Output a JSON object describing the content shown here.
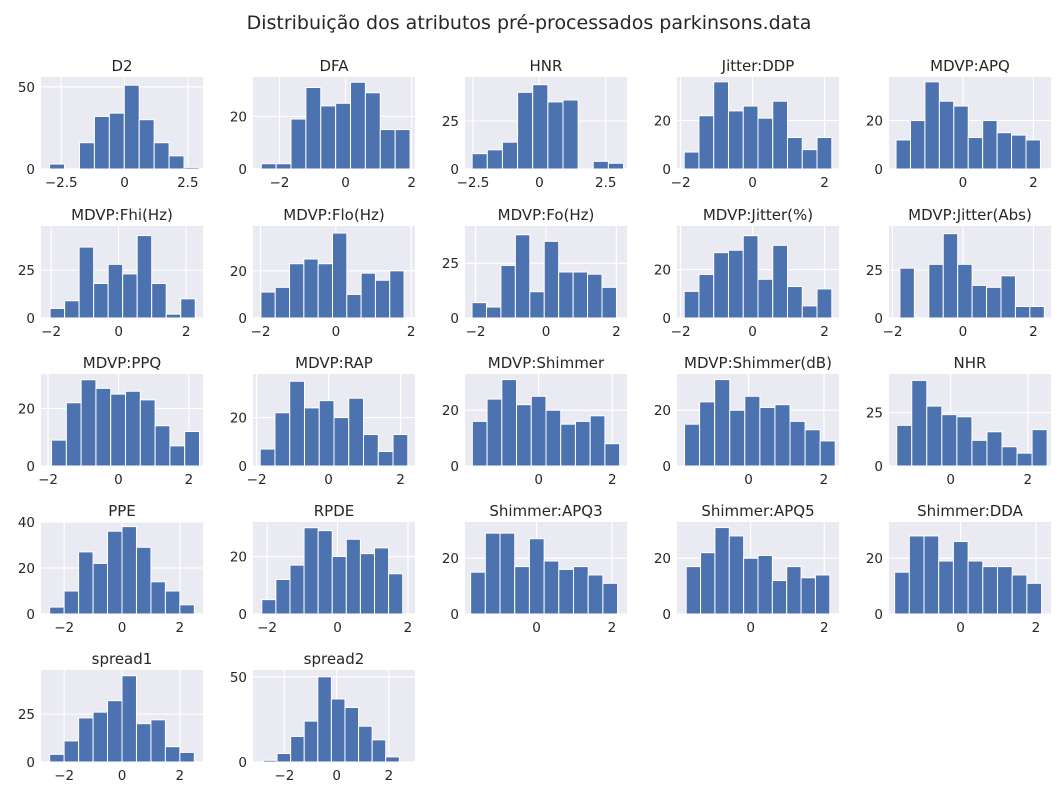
{
  "figure": {
    "title": "Distribuição dos atributos pré-processados parkinsons.data",
    "background": "#ffffff",
    "axes_face": "#eaeaf2",
    "bar_color": "#4c72b0",
    "text_color": "#262626"
  },
  "chart_data": [
    {
      "type": "bar",
      "title": "D2",
      "xlim": [
        -3.3,
        3.1
      ],
      "ylim": [
        0,
        56
      ],
      "xticks": [
        -2.5,
        0.0,
        2.5
      ],
      "yticks": [
        0,
        50
      ],
      "bin_edges": [
        -2.96,
        -2.37,
        -1.78,
        -1.19,
        -0.6,
        -0.01,
        0.58,
        1.17,
        1.76,
        2.35,
        2.94
      ],
      "values": [
        3,
        0,
        16,
        32,
        34,
        51,
        30,
        16,
        8,
        1
      ]
    },
    {
      "type": "bar",
      "title": "DFA",
      "xlim": [
        -2.8,
        2.1
      ],
      "ylim": [
        0,
        35
      ],
      "xticks": [
        -2,
        0,
        2
      ],
      "yticks": [
        0,
        20
      ],
      "bin_edges": [
        -2.55,
        -2.1,
        -1.65,
        -1.2,
        -0.75,
        -0.3,
        0.15,
        0.6,
        1.05,
        1.5,
        1.95
      ],
      "values": [
        2,
        2,
        19,
        31,
        24,
        25,
        33,
        29,
        15,
        15
      ]
    },
    {
      "type": "bar",
      "title": "HNR",
      "xlim": [
        -2.8,
        3.3
      ],
      "ylim": [
        0,
        48
      ],
      "xticks": [
        -2.5,
        0.0,
        2.5
      ],
      "yticks": [
        0,
        25
      ],
      "bin_edges": [
        -2.53,
        -1.96,
        -1.39,
        -0.82,
        -0.25,
        0.32,
        0.89,
        1.46,
        2.03,
        2.6,
        3.17
      ],
      "values": [
        8,
        10,
        14,
        40,
        44,
        35,
        36,
        0,
        4,
        3
      ]
    },
    {
      "type": "bar",
      "title": "Jitter:DDP",
      "xlim": [
        -2.1,
        2.4
      ],
      "ylim": [
        0,
        38
      ],
      "xticks": [
        -2,
        0,
        2
      ],
      "yticks": [
        0,
        20
      ],
      "bin_edges": [
        -1.9,
        -1.49,
        -1.08,
        -0.67,
        -0.26,
        0.15,
        0.56,
        0.97,
        1.38,
        1.79,
        2.2
      ],
      "values": [
        7,
        22,
        36,
        24,
        26,
        21,
        28,
        13,
        8,
        13
      ]
    },
    {
      "type": "bar",
      "title": "MDVP:APQ",
      "xlim": [
        -2.1,
        2.5
      ],
      "ylim": [
        0,
        38
      ],
      "xticks": [
        0,
        2
      ],
      "yticks": [
        0,
        20
      ],
      "bin_edges": [
        -1.9,
        -1.49,
        -1.08,
        -0.67,
        -0.26,
        0.15,
        0.56,
        0.97,
        1.38,
        1.79,
        2.2
      ],
      "values": [
        12,
        20,
        36,
        28,
        26,
        13,
        20,
        15,
        14,
        12
      ]
    },
    {
      "type": "bar",
      "title": "MDVP:Fhi(Hz)",
      "xlim": [
        -2.3,
        2.5
      ],
      "ylim": [
        0,
        48
      ],
      "xticks": [
        -2,
        0,
        2
      ],
      "yticks": [
        0,
        25
      ],
      "bin_edges": [
        -2.03,
        -1.6,
        -1.17,
        -0.74,
        -0.31,
        0.12,
        0.55,
        0.98,
        1.41,
        1.84,
        2.27
      ],
      "values": [
        5,
        9,
        37,
        18,
        28,
        23,
        43,
        18,
        2,
        10
      ]
    },
    {
      "type": "bar",
      "title": "MDVP:Flo(Hz)",
      "xlim": [
        -2.2,
        2.1
      ],
      "ylim": [
        0,
        39
      ],
      "xticks": [
        -2,
        0,
        2
      ],
      "yticks": [
        0,
        20
      ],
      "bin_edges": [
        -1.99,
        -1.61,
        -1.23,
        -0.85,
        -0.47,
        -0.09,
        0.29,
        0.67,
        1.05,
        1.43,
        1.81
      ],
      "values": [
        11,
        13,
        23,
        25,
        23,
        36,
        10,
        19,
        16,
        20
      ]
    },
    {
      "type": "bar",
      "title": "MDVP:Fo(Hz)",
      "xlim": [
        -2.3,
        2.3
      ],
      "ylim": [
        0,
        42
      ],
      "xticks": [
        -2,
        0,
        2
      ],
      "yticks": [
        0,
        25
      ],
      "bin_edges": [
        -2.1,
        -1.69,
        -1.28,
        -0.87,
        -0.46,
        -0.05,
        0.36,
        0.77,
        1.18,
        1.59,
        2.0
      ],
      "values": [
        7,
        5,
        24,
        38,
        12,
        35,
        21,
        21,
        20,
        14
      ]
    },
    {
      "type": "bar",
      "title": "MDVP:Jitter(%)",
      "xlim": [
        -2.1,
        2.4
      ],
      "ylim": [
        0,
        38
      ],
      "xticks": [
        -2,
        0,
        2
      ],
      "yticks": [
        0,
        20
      ],
      "bin_edges": [
        -1.9,
        -1.49,
        -1.08,
        -0.67,
        -0.26,
        0.15,
        0.56,
        0.97,
        1.38,
        1.79,
        2.2
      ],
      "values": [
        11,
        18,
        27,
        28,
        34,
        16,
        30,
        13,
        5,
        12
      ]
    },
    {
      "type": "bar",
      "title": "MDVP:Jitter(Abs)",
      "xlim": [
        -2.1,
        2.5
      ],
      "ylim": [
        0,
        48
      ],
      "xticks": [
        -2,
        0,
        2
      ],
      "yticks": [
        0,
        25
      ],
      "bin_edges": [
        -1.79,
        -1.38,
        -0.97,
        -0.56,
        -0.15,
        0.26,
        0.67,
        1.08,
        1.49,
        1.9,
        2.31
      ],
      "values": [
        26,
        0,
        28,
        44,
        28,
        17,
        16,
        22,
        6,
        6
      ]
    },
    {
      "type": "bar",
      "title": "MDVP:PPQ",
      "xlim": [
        -2.2,
        2.4
      ],
      "ylim": [
        0,
        32
      ],
      "xticks": [
        -2,
        0,
        2
      ],
      "yticks": [
        0,
        20
      ],
      "bin_edges": [
        -1.9,
        -1.48,
        -1.06,
        -0.64,
        -0.22,
        0.2,
        0.62,
        1.04,
        1.46,
        1.88,
        2.3
      ],
      "values": [
        9,
        22,
        30,
        27,
        25,
        26,
        23,
        14,
        7,
        12
      ]
    },
    {
      "type": "bar",
      "title": "MDVP:RAP",
      "xlim": [
        -2.1,
        2.4
      ],
      "ylim": [
        0,
        38
      ],
      "xticks": [
        -2,
        0,
        2
      ],
      "yticks": [
        0,
        20
      ],
      "bin_edges": [
        -1.9,
        -1.49,
        -1.08,
        -0.67,
        -0.26,
        0.15,
        0.56,
        0.97,
        1.38,
        1.79,
        2.2
      ],
      "values": [
        7,
        22,
        35,
        24,
        27,
        20,
        28,
        13,
        6,
        13
      ]
    },
    {
      "type": "bar",
      "title": "MDVP:Shimmer",
      "xlim": [
        -2.0,
        2.4
      ],
      "ylim": [
        0,
        33
      ],
      "xticks": [
        0,
        2
      ],
      "yticks": [
        0,
        20
      ],
      "bin_edges": [
        -1.8,
        -1.4,
        -1.0,
        -0.6,
        -0.2,
        0.2,
        0.6,
        1.0,
        1.4,
        1.8,
        2.2
      ],
      "values": [
        16,
        24,
        31,
        22,
        25,
        20,
        15,
        16,
        18,
        8
      ]
    },
    {
      "type": "bar",
      "title": "MDVP:Shimmer(dB)",
      "xlim": [
        -1.9,
        2.4
      ],
      "ylim": [
        0,
        33
      ],
      "xticks": [
        0,
        2
      ],
      "yticks": [
        0,
        20
      ],
      "bin_edges": [
        -1.7,
        -1.3,
        -0.9,
        -0.5,
        -0.1,
        0.3,
        0.7,
        1.1,
        1.5,
        1.9,
        2.3
      ],
      "values": [
        15,
        23,
        31,
        20,
        25,
        21,
        22,
        16,
        13,
        9
      ]
    },
    {
      "type": "bar",
      "title": "NHR",
      "xlim": [
        -1.6,
        2.6
      ],
      "ylim": [
        0,
        43
      ],
      "xticks": [
        0,
        2
      ],
      "yticks": [
        0,
        25
      ],
      "bin_edges": [
        -1.4,
        -1.01,
        -0.62,
        -0.23,
        0.16,
        0.55,
        0.94,
        1.33,
        1.72,
        2.11,
        2.5
      ],
      "values": [
        19,
        40,
        28,
        24,
        23,
        12,
        16,
        9,
        6,
        17
      ]
    },
    {
      "type": "bar",
      "title": "PPE",
      "xlim": [
        -2.8,
        2.8
      ],
      "ylim": [
        0,
        40
      ],
      "xticks": [
        -2,
        0,
        2
      ],
      "yticks": [
        0,
        20,
        40
      ],
      "bin_edges": [
        -2.5,
        -2.0,
        -1.5,
        -1.0,
        -0.5,
        0.0,
        0.5,
        1.0,
        1.5,
        2.0,
        2.5
      ],
      "values": [
        3,
        10,
        27,
        22,
        36,
        38,
        29,
        14,
        10,
        4
      ]
    },
    {
      "type": "bar",
      "title": "RPDE",
      "xlim": [
        -2.4,
        2.2
      ],
      "ylim": [
        0,
        32
      ],
      "xticks": [
        -2,
        0,
        2
      ],
      "yticks": [
        0,
        20
      ],
      "bin_edges": [
        -2.15,
        -1.75,
        -1.35,
        -0.95,
        -0.55,
        -0.15,
        0.25,
        0.65,
        1.05,
        1.45,
        1.85
      ],
      "values": [
        5,
        12,
        17,
        30,
        29,
        20,
        26,
        21,
        23,
        14
      ]
    },
    {
      "type": "bar",
      "title": "Shimmer:APQ3",
      "xlim": [
        -1.9,
        2.4
      ],
      "ylim": [
        0,
        33
      ],
      "xticks": [
        0,
        2
      ],
      "yticks": [
        0,
        20
      ],
      "bin_edges": [
        -1.75,
        -1.36,
        -0.97,
        -0.58,
        -0.19,
        0.2,
        0.59,
        0.98,
        1.37,
        1.76,
        2.15
      ],
      "values": [
        15,
        29,
        29,
        17,
        27,
        19,
        16,
        17,
        14,
        11
      ]
    },
    {
      "type": "bar",
      "title": "Shimmer:APQ5",
      "xlim": [
        -2.0,
        2.4
      ],
      "ylim": [
        0,
        33
      ],
      "xticks": [
        0,
        2
      ],
      "yticks": [
        0,
        20
      ],
      "bin_edges": [
        -1.75,
        -1.36,
        -0.97,
        -0.58,
        -0.19,
        0.2,
        0.59,
        0.98,
        1.37,
        1.76,
        2.15
      ],
      "values": [
        17,
        22,
        31,
        28,
        20,
        21,
        12,
        17,
        13,
        14
      ]
    },
    {
      "type": "bar",
      "title": "Shimmer:DDA",
      "xlim": [
        -1.9,
        2.4
      ],
      "ylim": [
        0,
        33
      ],
      "xticks": [
        0,
        2
      ],
      "yticks": [
        0,
        20
      ],
      "bin_edges": [
        -1.75,
        -1.36,
        -0.97,
        -0.58,
        -0.19,
        0.2,
        0.59,
        0.98,
        1.37,
        1.76,
        2.15
      ],
      "values": [
        15,
        28,
        28,
        19,
        26,
        19,
        17,
        17,
        14,
        11
      ]
    },
    {
      "type": "bar",
      "title": "spread1",
      "xlim": [
        -2.8,
        2.8
      ],
      "ylim": [
        0,
        48
      ],
      "xticks": [
        -2,
        0,
        2
      ],
      "yticks": [
        0,
        25
      ],
      "bin_edges": [
        -2.5,
        -2.0,
        -1.5,
        -1.0,
        -0.5,
        0.0,
        0.5,
        1.0,
        1.5,
        2.0,
        2.5
      ],
      "values": [
        4,
        11,
        23,
        26,
        32,
        45,
        20,
        22,
        8,
        5
      ]
    },
    {
      "type": "bar",
      "title": "spread2",
      "xlim": [
        -3.2,
        3.0
      ],
      "ylim": [
        0,
        54
      ],
      "xticks": [
        -2,
        0,
        2
      ],
      "yticks": [
        0,
        50
      ],
      "bin_edges": [
        -2.8,
        -2.28,
        -1.76,
        -1.24,
        -0.72,
        -0.2,
        0.32,
        0.84,
        1.36,
        1.88,
        2.4
      ],
      "values": [
        1,
        5,
        15,
        24,
        50,
        37,
        32,
        21,
        13,
        3
      ]
    }
  ]
}
